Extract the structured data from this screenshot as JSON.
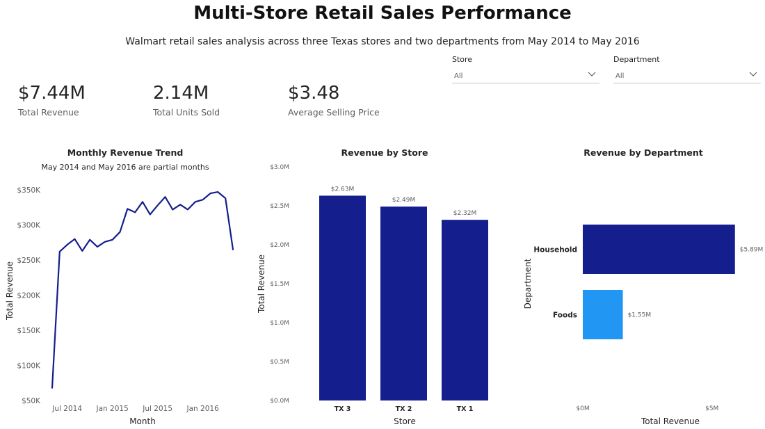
{
  "header": {
    "title": "Multi-Store Retail Sales Performance",
    "subtitle": "Walmart retail sales analysis across three Texas stores and two departments from May 2014 to May 2016"
  },
  "kpis": [
    {
      "value": "$7.44M",
      "label": "Total Revenue"
    },
    {
      "value": "2.14M",
      "label": "Total Units Sold"
    },
    {
      "value": "$3.48",
      "label": "Average Selling Price"
    }
  ],
  "filters": {
    "store": {
      "label": "Store",
      "value": "All"
    },
    "department": {
      "label": "Department",
      "value": "All"
    }
  },
  "colors": {
    "dark_blue": "#141E8C",
    "light_blue": "#2196F3",
    "axis_text": "#605e5c"
  },
  "chart_data": [
    {
      "type": "line",
      "title": "Monthly Revenue Trend",
      "subtitle": "May 2014 and May 2016 are partial months",
      "xlabel": "Month",
      "ylabel": "Total Revenue",
      "x": [
        "2014-05",
        "2014-06",
        "2014-07",
        "2014-08",
        "2014-09",
        "2014-10",
        "2014-11",
        "2014-12",
        "2015-01",
        "2015-02",
        "2015-03",
        "2015-04",
        "2015-05",
        "2015-06",
        "2015-07",
        "2015-08",
        "2015-09",
        "2015-10",
        "2015-11",
        "2015-12",
        "2016-01",
        "2016-02",
        "2016-03",
        "2016-04",
        "2016-05"
      ],
      "x_tick_labels": [
        {
          "x": "2014-07",
          "label": "Jul 2014"
        },
        {
          "x": "2015-01",
          "label": "Jan 2015"
        },
        {
          "x": "2015-07",
          "label": "Jul 2015"
        },
        {
          "x": "2016-01",
          "label": "Jan 2016"
        }
      ],
      "values": [
        68000,
        262000,
        272000,
        280000,
        263000,
        279000,
        269000,
        276000,
        279000,
        290000,
        323000,
        318000,
        333000,
        315000,
        328000,
        340000,
        322000,
        329000,
        322000,
        333000,
        336000,
        345000,
        347000,
        338000,
        265000
      ],
      "ylim": [
        50000,
        360000
      ],
      "y_ticks": [
        {
          "value": 50000,
          "label": "$50K"
        },
        {
          "value": 100000,
          "label": "$100K"
        },
        {
          "value": 150000,
          "label": "$150K"
        },
        {
          "value": 200000,
          "label": "$200K"
        },
        {
          "value": 250000,
          "label": "$250K"
        },
        {
          "value": 300000,
          "label": "$300K"
        },
        {
          "value": 350000,
          "label": "$350K"
        }
      ],
      "grid": false,
      "color": "#141E8C"
    },
    {
      "type": "bar",
      "title": "Revenue by Store",
      "xlabel": "Store",
      "ylabel": "Total Revenue",
      "categories": [
        "TX 3",
        "TX 2",
        "TX 1"
      ],
      "values": [
        2.63,
        2.49,
        2.32
      ],
      "data_labels": [
        "$2.63M",
        "$2.49M",
        "$2.32M"
      ],
      "ylim": [
        0,
        3.0
      ],
      "y_ticks": [
        {
          "value": 0,
          "label": "$0.0M"
        },
        {
          "value": 0.5,
          "label": "$0.5M"
        },
        {
          "value": 1.0,
          "label": "$1.0M"
        },
        {
          "value": 1.5,
          "label": "$1.5M"
        },
        {
          "value": 2.0,
          "label": "$2.0M"
        },
        {
          "value": 2.5,
          "label": "$2.5M"
        },
        {
          "value": 3.0,
          "label": "$3.0M"
        }
      ],
      "grid": false,
      "color": "#141E8C"
    },
    {
      "type": "bar",
      "orientation": "horizontal",
      "title": "Revenue by Department",
      "xlabel": "Total Revenue",
      "ylabel": "Department",
      "categories": [
        "Household",
        "Foods"
      ],
      "values": [
        5.89,
        1.55
      ],
      "data_labels": [
        "$5.89M",
        "$1.55M"
      ],
      "colors": [
        "#141E8C",
        "#2196F3"
      ],
      "xlim": [
        0,
        6.3
      ],
      "x_ticks": [
        {
          "value": 0,
          "label": "$0M"
        },
        {
          "value": 5,
          "label": "$5M"
        }
      ],
      "grid": false
    }
  ]
}
